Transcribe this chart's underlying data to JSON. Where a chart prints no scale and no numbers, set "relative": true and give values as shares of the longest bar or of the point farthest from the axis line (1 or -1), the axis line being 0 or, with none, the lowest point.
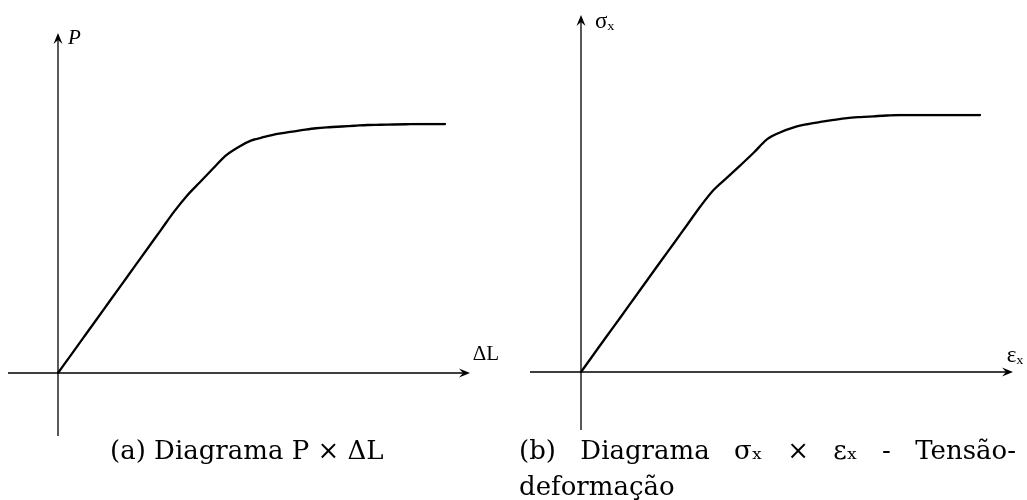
{
  "chart_data": [
    {
      "type": "line",
      "title": "(a) Diagrama P × ΔL",
      "xlabel": "ΔL",
      "ylabel": "P",
      "relative": true,
      "tick_labels": false,
      "color": "#000000",
      "categories": [
        null,
        null,
        null,
        null,
        null,
        null,
        null,
        null,
        null,
        null,
        null,
        null,
        null,
        null,
        null,
        null,
        null,
        null,
        null,
        null,
        null,
        null,
        null,
        null,
        null,
        null,
        null,
        null,
        null,
        null,
        null
      ],
      "values": [
        0,
        0.072,
        0.144,
        0.216,
        0.288,
        0.36,
        0.432,
        0.504,
        0.576,
        0.648,
        0.712,
        0.766,
        0.82,
        0.873,
        0.908,
        0.934,
        0.948,
        0.96,
        0.968,
        0.976,
        0.983,
        0.987,
        0.99,
        0.993,
        0.996,
        0.997,
        0.998,
        0.999,
        1,
        1,
        1
      ]
    },
    {
      "type": "line",
      "title": "(b) Diagrama σₓ × εₓ - Tensão-deformação",
      "xlabel": "εₓ",
      "ylabel": "σₓ",
      "relative": true,
      "tick_labels": false,
      "color": "#000000",
      "categories": [
        null,
        null,
        null,
        null,
        null,
        null,
        null,
        null,
        null,
        null,
        null,
        null,
        null,
        null,
        null,
        null,
        null,
        null,
        null,
        null,
        null,
        null,
        null,
        null,
        null,
        null,
        null,
        null,
        null,
        null,
        null
      ],
      "values": [
        0,
        0.072,
        0.144,
        0.215,
        0.287,
        0.359,
        0.431,
        0.502,
        0.574,
        0.646,
        0.71,
        0.757,
        0.805,
        0.854,
        0.906,
        0.933,
        0.952,
        0.964,
        0.973,
        0.981,
        0.988,
        0.992,
        0.995,
        0.998,
        1,
        1,
        1,
        1,
        1,
        1,
        1
      ]
    }
  ]
}
